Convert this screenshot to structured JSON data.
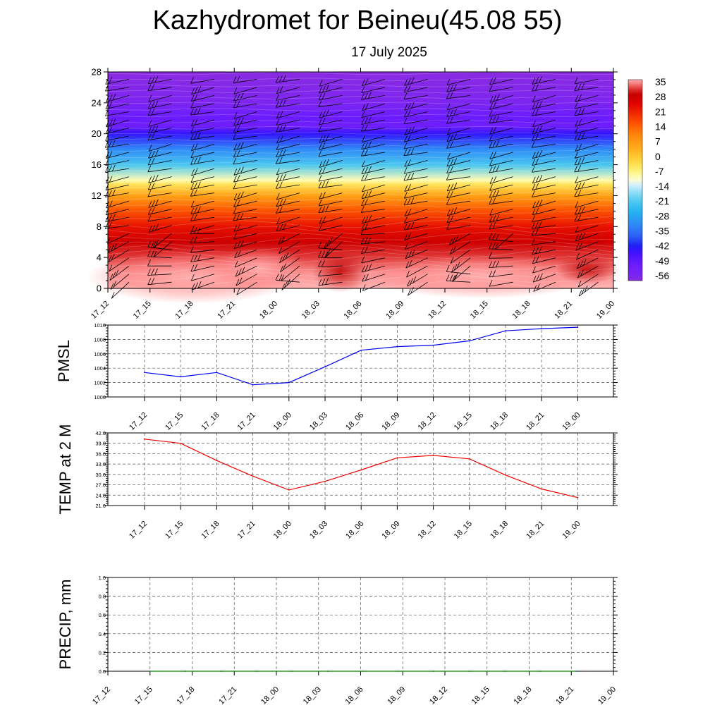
{
  "title": "Kazhydromet for Beineu(45.08 55)",
  "subtitle": "17 July 2025",
  "colorbar": {
    "labels": [
      "35",
      "28",
      "21",
      "14",
      "7",
      "0",
      "-7",
      "-14",
      "-21",
      "-28",
      "-35",
      "-42",
      "-49",
      "-56"
    ]
  },
  "chart_data": [
    {
      "type": "heatmap",
      "name_hint": "temperature-height section",
      "x_ticks": [
        "17_12",
        "17_15",
        "17_18",
        "17_21",
        "18_00",
        "18_03",
        "18_06",
        "18_09",
        "18_12",
        "18_15",
        "18_18",
        "18_21",
        "19_00"
      ],
      "y_ticks": [
        0,
        4,
        8,
        12,
        16,
        20,
        24,
        28
      ],
      "ylim": [
        0,
        28
      ],
      "value_range": [
        -56,
        35
      ],
      "temperature_profile": [
        {
          "y": 0,
          "v": 35
        },
        {
          "y": 2,
          "v": 34
        },
        {
          "y": 4,
          "v": 31
        },
        {
          "y": 6,
          "v": 27
        },
        {
          "y": 8,
          "v": 22
        },
        {
          "y": 10,
          "v": 15
        },
        {
          "y": 12,
          "v": 5
        },
        {
          "y": 13.5,
          "v": -5
        },
        {
          "y": 14,
          "v": -10
        },
        {
          "y": 16,
          "v": -22
        },
        {
          "y": 18,
          "v": -32
        },
        {
          "y": 20,
          "v": -44
        },
        {
          "y": 21,
          "v": -52
        },
        {
          "y": 22,
          "v": -50
        },
        {
          "y": 24,
          "v": -56
        },
        {
          "y": 28,
          "v": -58
        }
      ]
    },
    {
      "type": "line",
      "ylabel": "PMSL",
      "x": [
        "17_12",
        "17_15",
        "17_18",
        "17_21",
        "18_00",
        "18_03",
        "18_06",
        "18_09",
        "18_12",
        "18_15",
        "18_18",
        "18_21",
        "19_00"
      ],
      "series": [
        {
          "color": "#0000ee",
          "values": [
            1003.4,
            1002.8,
            1003.4,
            1001.7,
            1002.0,
            1004.2,
            1006.5,
            1007.0,
            1007.2,
            1007.8,
            1009.2,
            1009.5,
            1009.7
          ]
        }
      ],
      "ylim": [
        1000,
        1010
      ],
      "y_ticks": [
        "1000",
        "1002",
        "1004",
        "1006",
        "1008",
        "1010"
      ]
    },
    {
      "type": "line",
      "ylabel": "TEMP at 2 M",
      "x": [
        "17_12",
        "17_15",
        "17_18",
        "17_21",
        "18_00",
        "18_03",
        "18_06",
        "18_09",
        "18_12",
        "18_15",
        "18_18",
        "18_21",
        "19_00"
      ],
      "series": [
        {
          "color": "#ee0000",
          "values": [
            40.2,
            39.0,
            34.0,
            29.5,
            25.5,
            28.0,
            31.3,
            34.8,
            35.5,
            34.5,
            29.8,
            25.8,
            23.3
          ]
        }
      ],
      "ylim": [
        21,
        42
      ],
      "y_ticks": [
        "21.0",
        "24.0",
        "27.0",
        "30.0",
        "33.0",
        "36.0",
        "39.0",
        "42.0"
      ]
    },
    {
      "type": "line",
      "ylabel": "PRECIP, mm",
      "x": [
        "17_12",
        "17_15",
        "17_18",
        "17_21",
        "18_00",
        "18_03",
        "18_06",
        "18_09",
        "18_12",
        "18_15",
        "18_18",
        "18_21",
        "19_00"
      ],
      "series": [
        {
          "color": "#008800",
          "values": [
            0,
            0,
            0,
            0,
            0,
            0,
            0,
            0,
            0,
            0,
            0,
            0,
            0
          ]
        }
      ],
      "ylim": [
        0,
        1
      ],
      "y_ticks": [
        "0.0",
        "0.2",
        "0.4",
        "0.6",
        "0.8",
        "1.0"
      ]
    }
  ]
}
